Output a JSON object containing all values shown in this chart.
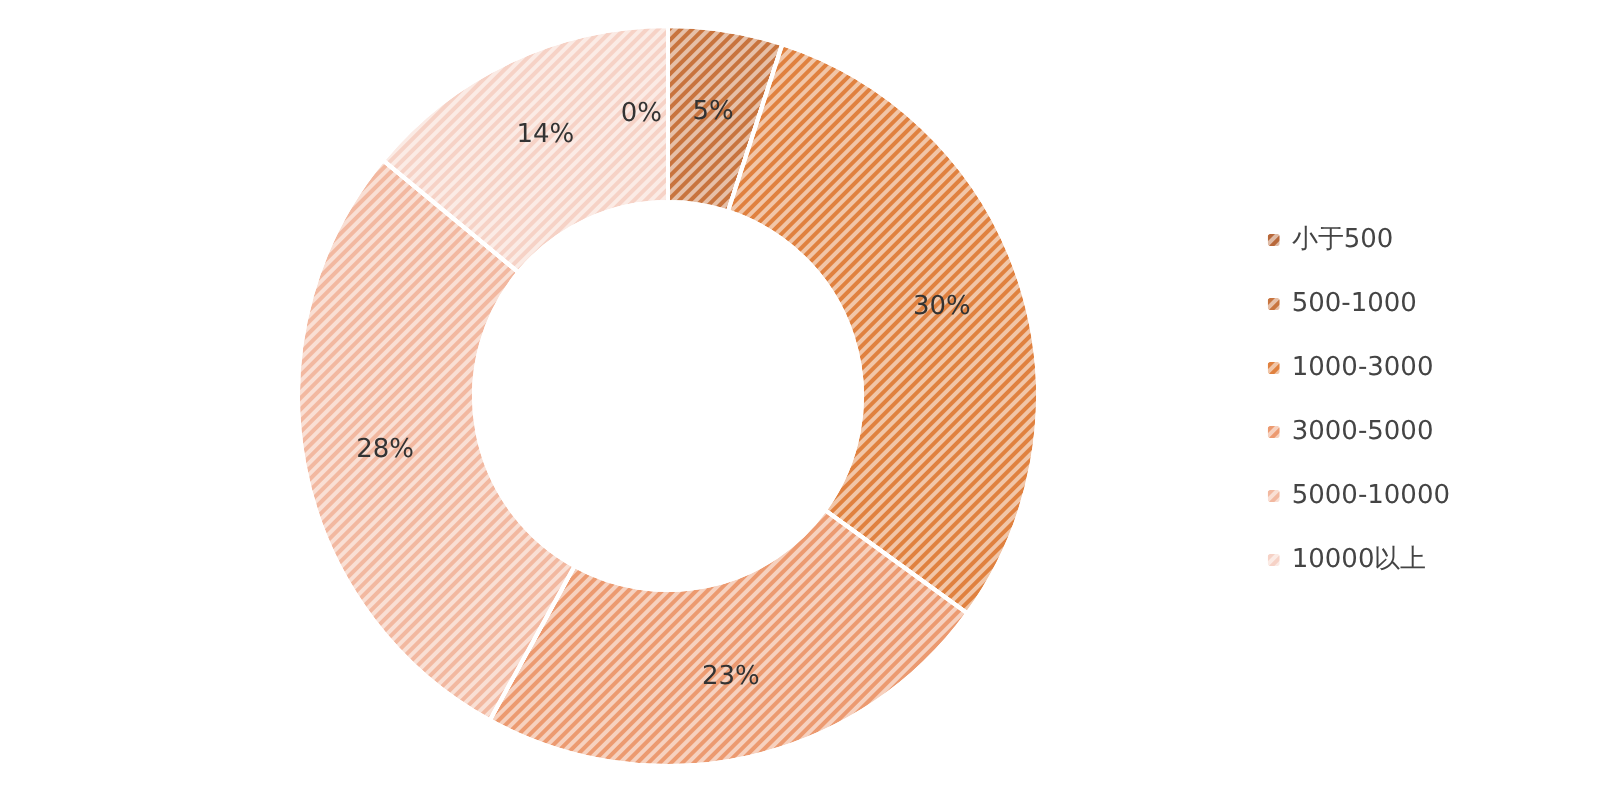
{
  "chart_data": {
    "type": "donut",
    "categories": [
      "小于500",
      "500-1000",
      "1000-3000",
      "3000-5000",
      "5000-10000",
      "10000以上"
    ],
    "values": [
      0,
      5,
      30,
      23,
      28,
      14
    ],
    "value_labels": [
      "0%",
      "5%",
      "30%",
      "23%",
      "28%",
      "14%"
    ],
    "colors": [
      "#b8683a",
      "#c8743e",
      "#e0813f",
      "#ec9a70",
      "#f2b8a0",
      "#f6d2c6"
    ],
    "legend": "right"
  }
}
